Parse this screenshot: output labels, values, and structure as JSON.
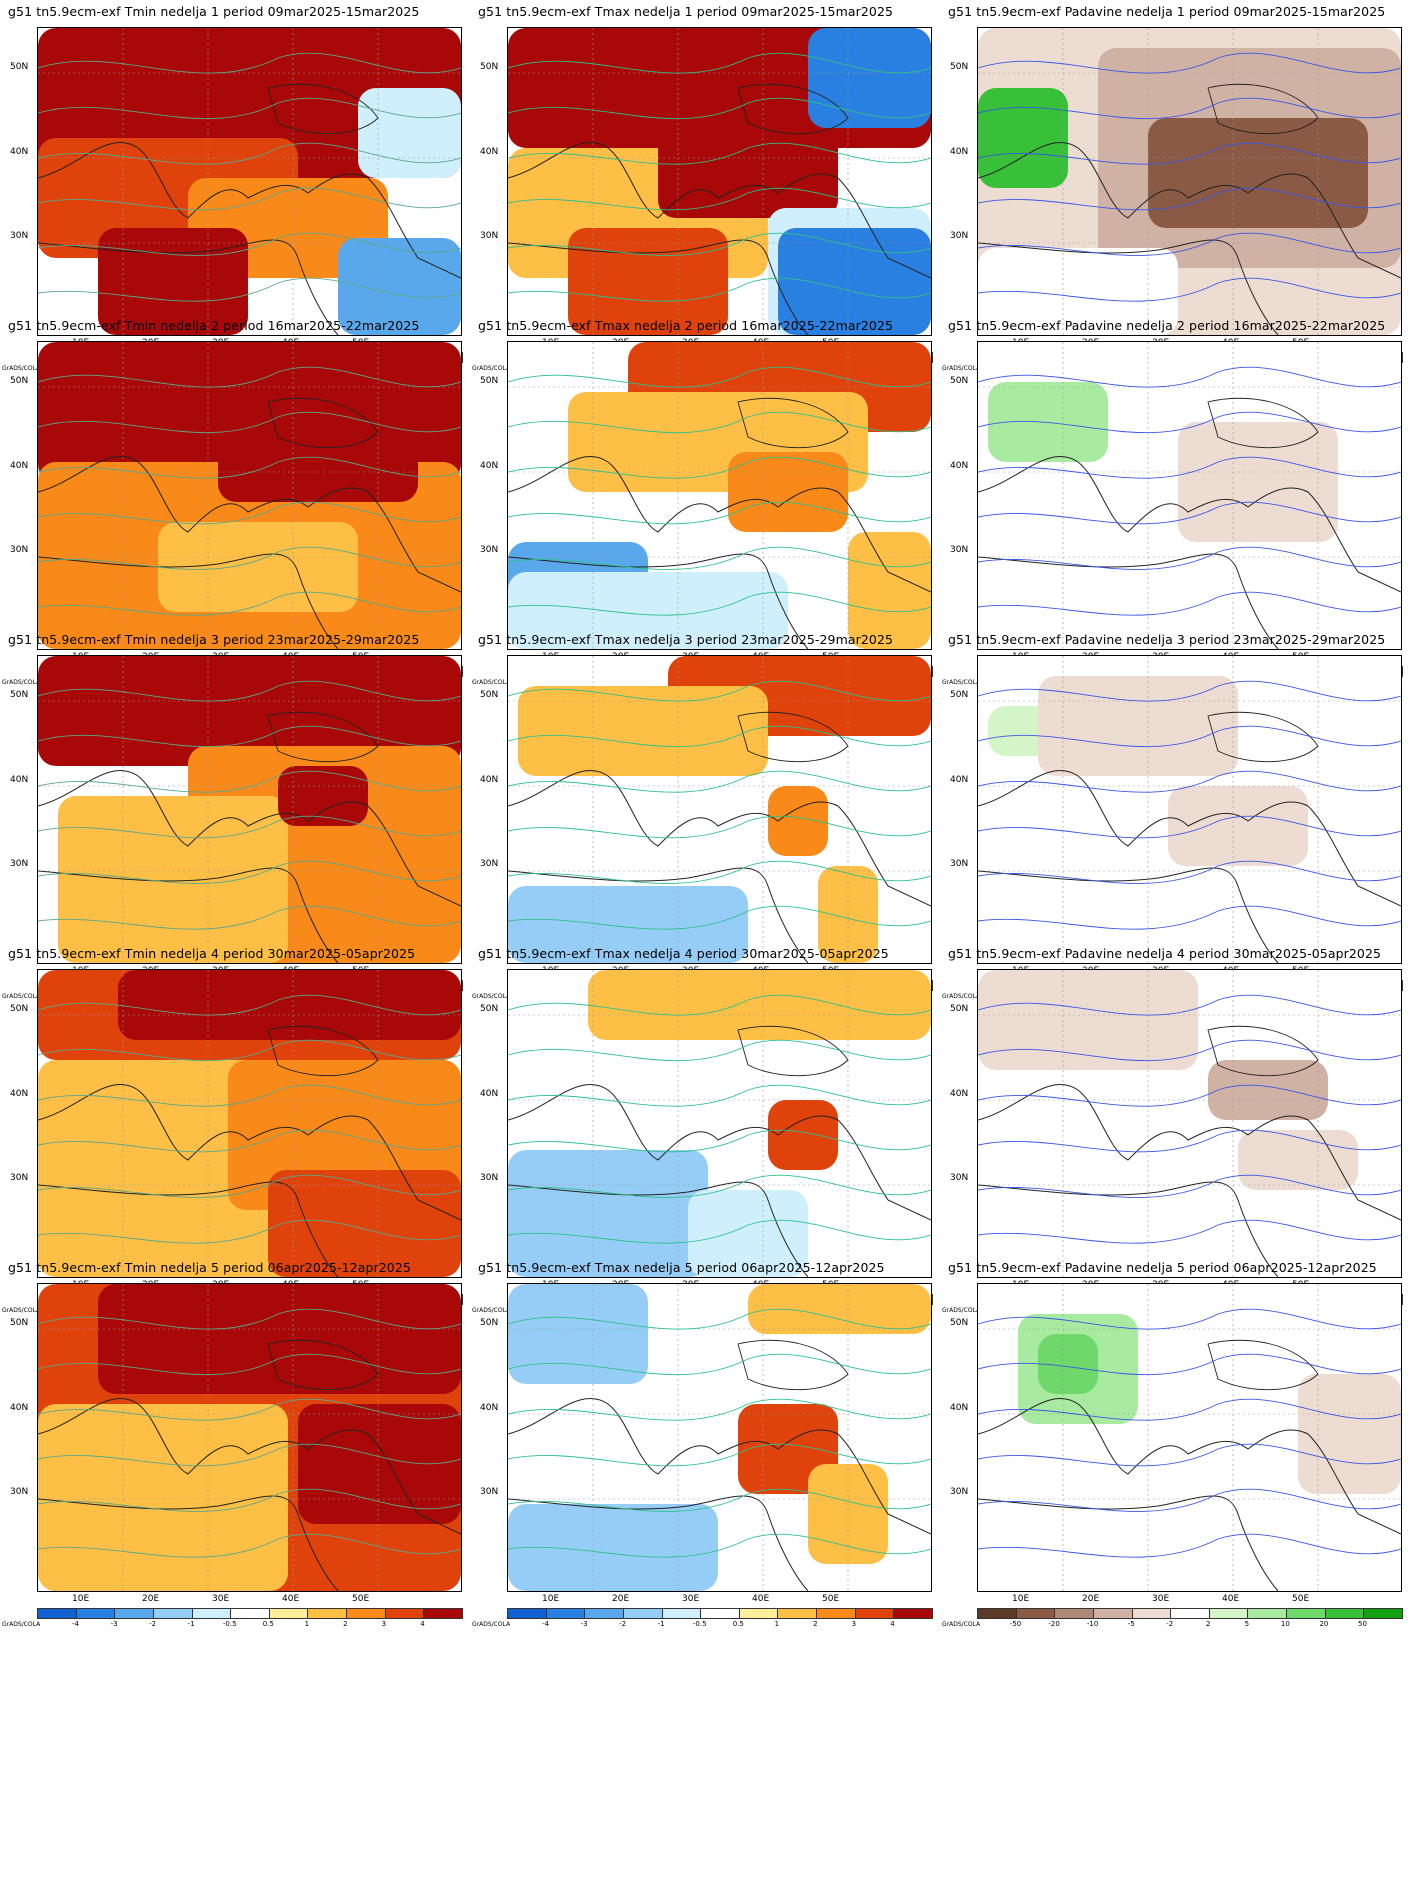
{
  "figure": {
    "credit": "GrADS/COLA",
    "lat_labels": [
      "50N",
      "40N",
      "30N"
    ],
    "lon_labels": [
      "10E",
      "20E",
      "30E",
      "40E",
      "50E"
    ],
    "temp_scale": {
      "labels": [
        "-4",
        "-3",
        "-2",
        "-1",
        "-0.5",
        "0.5",
        "1",
        "2",
        "3",
        "4"
      ],
      "colors": [
        "#1060d0",
        "#2a80e0",
        "#5aa8ec",
        "#96cdf6",
        "#cfeffc",
        "#ffffff",
        "#ffef9c",
        "#fdbf45",
        "#f98a1a",
        "#e0420c",
        "#a80808"
      ]
    },
    "precip_scale": {
      "labels": [
        "-50",
        "-20",
        "-10",
        "-5",
        "-2",
        "2",
        "5",
        "10",
        "20",
        "50"
      ],
      "colors": [
        "#5c3a28",
        "#8a5a44",
        "#b08878",
        "#d0b2a4",
        "#ecdcd2",
        "#ffffff",
        "#d4f5c8",
        "#a8eaa0",
        "#6ed86a",
        "#38c038",
        "#12a012"
      ]
    },
    "rows": [
      {
        "tmin": "g51 tn5.9ecm-exf Tmin nedelja 1 period 09mar2025-15mar2025",
        "tmax": "g51 tn5.9ecm-exf Tmax nedelja 1 period 09mar2025-15mar2025",
        "prec": "g51 tn5.9ecm-exf Padavine nedelja 1 period 09mar2025-15mar2025"
      },
      {
        "tmin": "g51 tn5.9ecm-exf Tmin nedelja 2 period 16mar2025-22mar2025",
        "tmax": "g51 tn5.9ecm-exf Tmax nedelja 2 period 16mar2025-22mar2025",
        "prec": "g51 tn5.9ecm-exf Padavine nedelja 2 period 16mar2025-22mar2025"
      },
      {
        "tmin": "g51 tn5.9ecm-exf Tmin nedelja 3 period 23mar2025-29mar2025",
        "tmax": "g51 tn5.9ecm-exf Tmax nedelja 3 period 23mar2025-29mar2025",
        "prec": "g51 tn5.9ecm-exf Padavine nedelja 3 period 23mar2025-29mar2025"
      },
      {
        "tmin": "g51 tn5.9ecm-exf Tmin nedelja 4 period 30mar2025-05apr2025",
        "tmax": "g51 tn5.9ecm-exf Tmax nedelja 4 period 30mar2025-05apr2025",
        "prec": "g51 tn5.9ecm-exf Padavine nedelja 4 period 30mar2025-05apr2025"
      },
      {
        "tmin": "g51 tn5.9ecm-exf Tmin nedelja 5 period 06apr2025-12apr2025",
        "tmax": "g51 tn5.9ecm-exf Tmax nedelja 5 period 06apr2025-12apr2025",
        "prec": "g51 tn5.9ecm-exf Padavine nedelja 5 period 06apr2025-12apr2025"
      }
    ]
  }
}
